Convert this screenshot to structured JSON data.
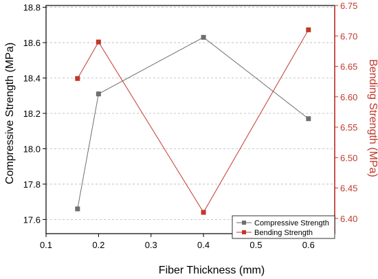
{
  "chart_data": {
    "type": "line",
    "xlabel": "Fiber Thickness (mm)",
    "ylabel_left": "Compressive Strength (MPa)",
    "ylabel_right": "Bending Strength (MPa)",
    "x_ticks": [
      "0.1",
      "0.2",
      "0.3",
      "0.4",
      "0.5",
      "0.6"
    ],
    "y_left_ticks": [
      "17.6",
      "17.8",
      "18.0",
      "18.2",
      "18.4",
      "18.6",
      "18.8"
    ],
    "y_right_ticks": [
      "6.40",
      "6.45",
      "6.50",
      "6.55",
      "6.60",
      "6.65",
      "6.70",
      "6.75"
    ],
    "xlim": [
      0.1,
      0.65
    ],
    "ylim_left": [
      17.52,
      18.81
    ],
    "ylim_right": [
      6.375,
      6.75
    ],
    "grid": "horizontal dashed",
    "legend_position": "bottom-right",
    "series": [
      {
        "name": "Compressive Strength",
        "axis": "left",
        "color": "#6e6e6e",
        "x": [
          0.16,
          0.2,
          0.4,
          0.6
        ],
        "y": [
          17.66,
          18.31,
          18.63,
          18.17
        ]
      },
      {
        "name": "Bending Strength",
        "axis": "right",
        "color": "#c0392b",
        "x": [
          0.16,
          0.2,
          0.4,
          0.6
        ],
        "y": [
          6.63,
          6.69,
          6.41,
          6.71
        ]
      }
    ]
  }
}
